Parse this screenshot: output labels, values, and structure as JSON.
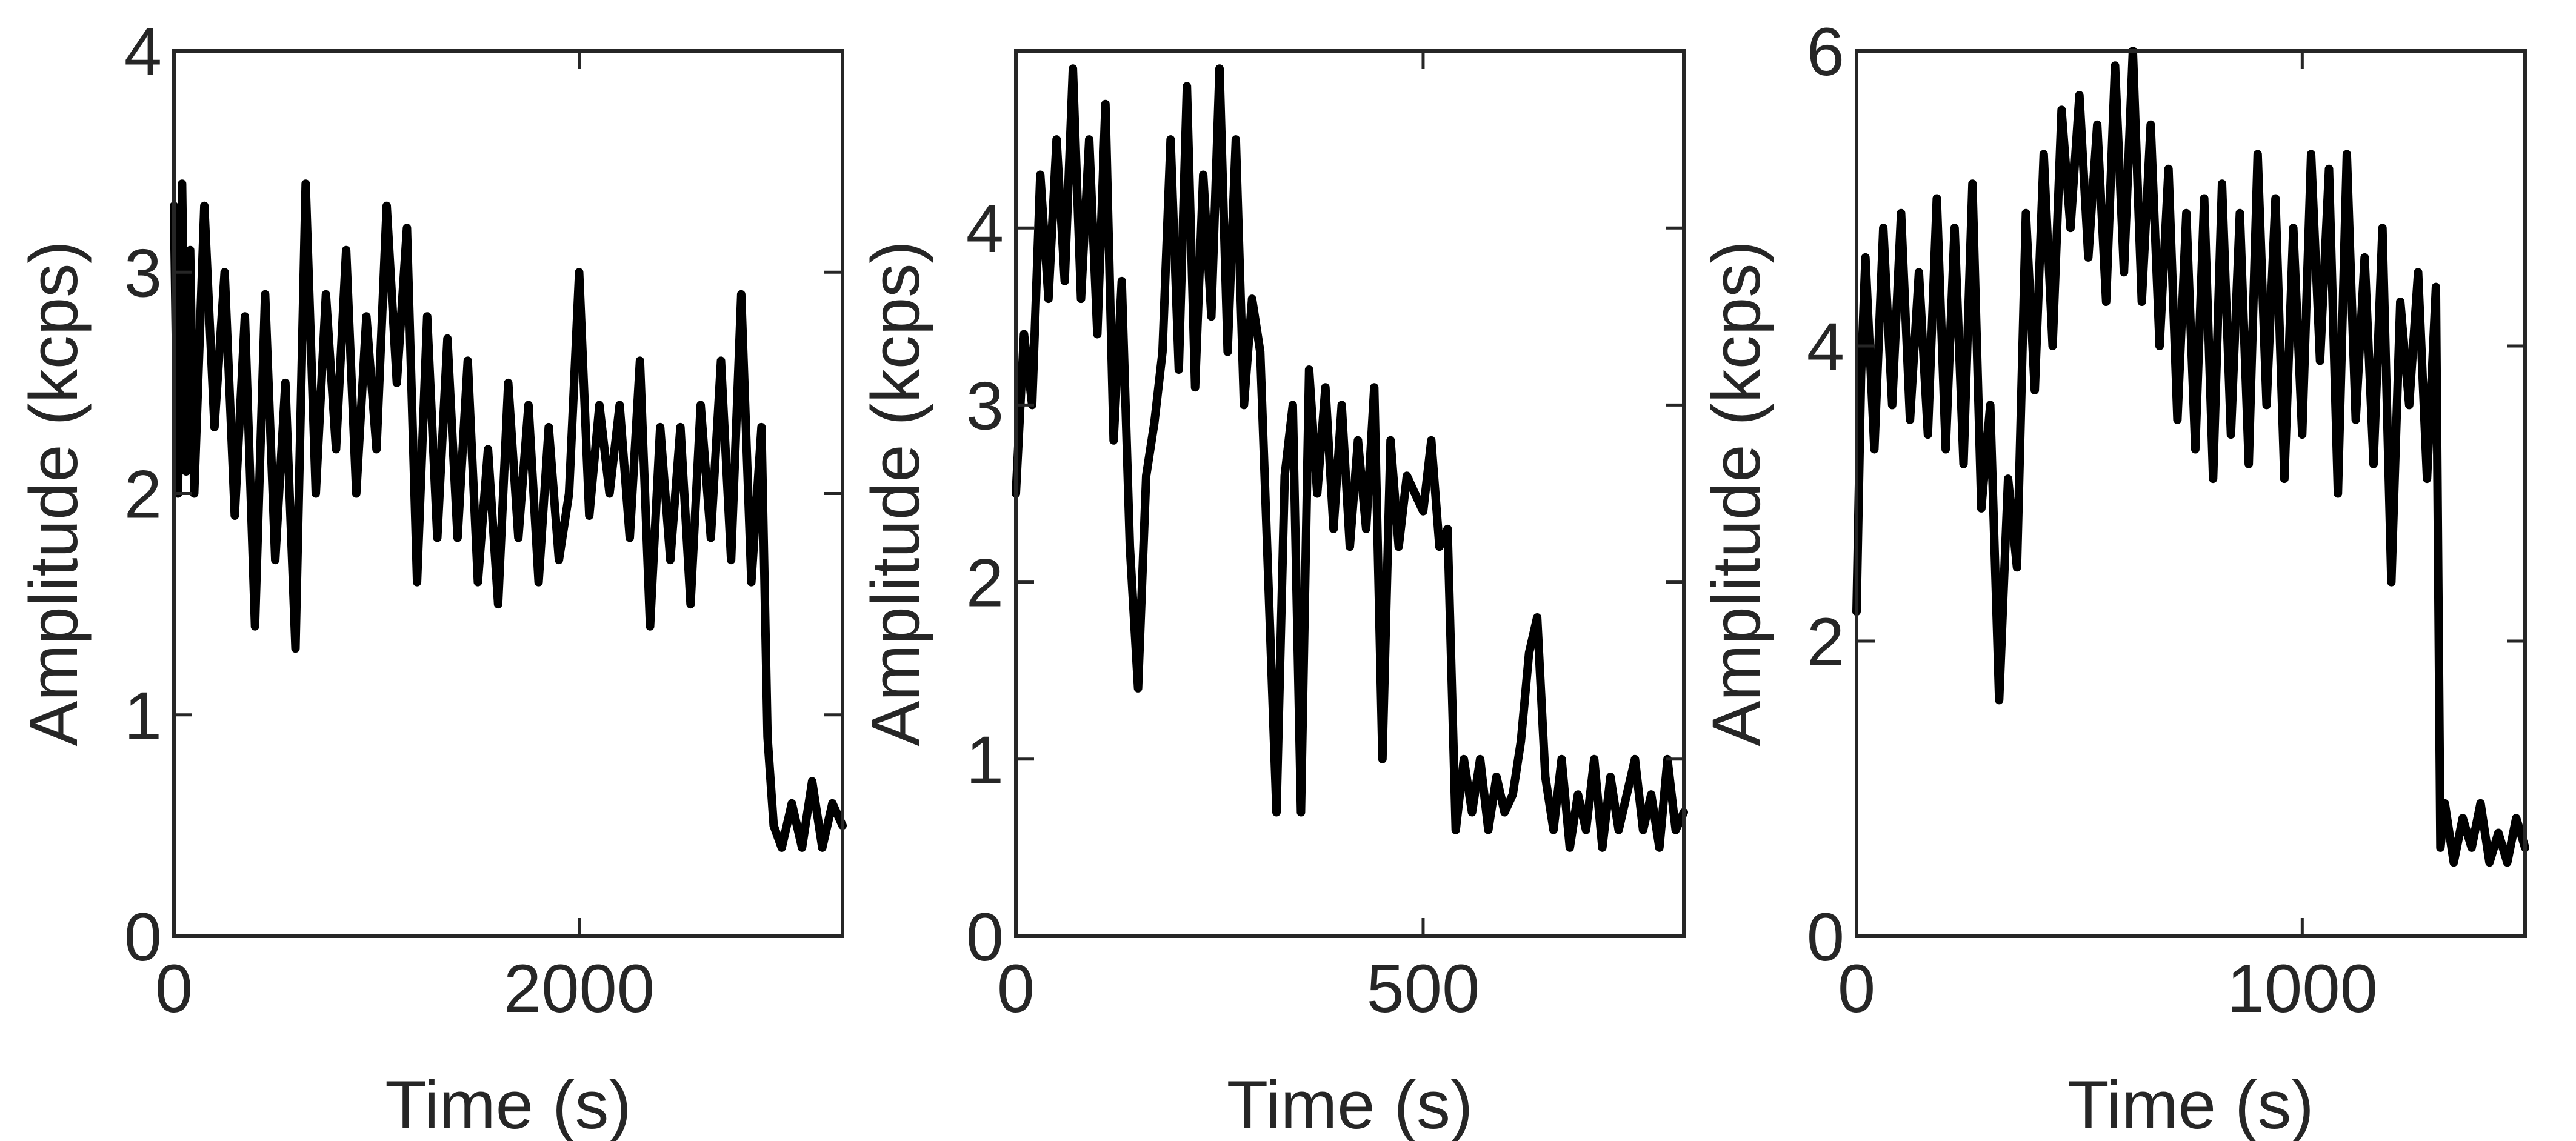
{
  "chart_data": [
    {
      "type": "line",
      "xlabel": "Time (s)",
      "ylabel": "Amplitude (kcps)",
      "xlim": [
        0,
        3300
      ],
      "ylim": [
        0,
        4
      ],
      "xticks": [
        0,
        2000
      ],
      "yticks": [
        0,
        1,
        2,
        3,
        4
      ],
      "series": [
        {
          "color": "#000000",
          "x": [
            0,
            20,
            40,
            60,
            80,
            100,
            150,
            200,
            250,
            300,
            350,
            400,
            450,
            500,
            550,
            600,
            650,
            700,
            750,
            800,
            850,
            900,
            950,
            1000,
            1050,
            1100,
            1150,
            1200,
            1250,
            1300,
            1350,
            1400,
            1450,
            1500,
            1550,
            1600,
            1650,
            1700,
            1750,
            1800,
            1850,
            1900,
            1950,
            2000,
            2050,
            2100,
            2150,
            2200,
            2250,
            2300,
            2350,
            2400,
            2450,
            2500,
            2550,
            2600,
            2650,
            2700,
            2750,
            2800,
            2850,
            2900,
            2930,
            2960,
            3000,
            3050,
            3100,
            3150,
            3200,
            3250,
            3300
          ],
          "y": [
            3.3,
            2.0,
            3.4,
            2.1,
            3.1,
            2.0,
            3.3,
            2.3,
            3.0,
            1.9,
            2.8,
            1.4,
            2.9,
            1.7,
            2.5,
            1.3,
            3.4,
            2.0,
            2.9,
            2.2,
            3.1,
            2.0,
            2.8,
            2.2,
            3.3,
            2.5,
            3.2,
            1.6,
            2.8,
            1.8,
            2.7,
            1.8,
            2.6,
            1.6,
            2.2,
            1.5,
            2.5,
            1.8,
            2.4,
            1.6,
            2.3,
            1.7,
            2.0,
            3.0,
            1.9,
            2.4,
            2.0,
            2.4,
            1.8,
            2.6,
            1.4,
            2.3,
            1.7,
            2.3,
            1.5,
            2.4,
            1.8,
            2.6,
            1.7,
            2.9,
            1.6,
            2.3,
            0.9,
            0.5,
            0.4,
            0.6,
            0.4,
            0.7,
            0.4,
            0.6,
            0.5
          ]
        }
      ]
    },
    {
      "type": "line",
      "xlabel": "Time (s)",
      "ylabel": "Amplitude (kcps)",
      "xlim": [
        0,
        820
      ],
      "ylim": [
        0,
        5
      ],
      "xticks": [
        0,
        500
      ],
      "yticks": [
        0,
        1,
        2,
        3,
        4
      ],
      "series": [
        {
          "color": "#000000",
          "x": [
            0,
            10,
            20,
            30,
            40,
            50,
            60,
            70,
            80,
            90,
            100,
            110,
            120,
            130,
            140,
            150,
            160,
            170,
            180,
            190,
            200,
            210,
            220,
            230,
            240,
            250,
            260,
            270,
            280,
            290,
            300,
            310,
            320,
            330,
            340,
            350,
            360,
            370,
            380,
            390,
            400,
            410,
            420,
            430,
            440,
            450,
            460,
            470,
            480,
            490,
            500,
            510,
            520,
            530,
            540,
            550,
            560,
            570,
            580,
            590,
            600,
            610,
            620,
            630,
            640,
            650,
            660,
            670,
            680,
            690,
            700,
            710,
            720,
            730,
            740,
            750,
            760,
            770,
            780,
            790,
            800,
            810,
            820
          ],
          "y": [
            2.5,
            3.4,
            3.0,
            4.3,
            3.6,
            4.5,
            3.7,
            4.9,
            3.6,
            4.5,
            3.4,
            4.7,
            2.8,
            3.7,
            2.2,
            1.4,
            2.6,
            2.9,
            3.3,
            4.5,
            3.2,
            4.8,
            3.1,
            4.3,
            3.5,
            4.9,
            3.3,
            4.5,
            3.0,
            3.6,
            3.3,
            2.0,
            0.7,
            2.6,
            3.0,
            0.7,
            3.2,
            2.5,
            3.1,
            2.3,
            3.0,
            2.2,
            2.8,
            2.3,
            3.1,
            1.0,
            2.8,
            2.2,
            2.6,
            2.5,
            2.4,
            2.8,
            2.2,
            2.3,
            0.6,
            1.0,
            0.7,
            1.0,
            0.6,
            0.9,
            0.7,
            0.8,
            1.1,
            1.6,
            1.8,
            0.9,
            0.6,
            1.0,
            0.5,
            0.8,
            0.6,
            1.0,
            0.5,
            0.9,
            0.6,
            0.8,
            1.0,
            0.6,
            0.8,
            0.5,
            1.0,
            0.6,
            0.7
          ]
        }
      ]
    },
    {
      "type": "line",
      "xlabel": "Time (s)",
      "ylabel": "Amplitude (kcps)",
      "xlim": [
        0,
        1500
      ],
      "ylim": [
        0,
        6
      ],
      "xticks": [
        0,
        1000
      ],
      "yticks": [
        0,
        2,
        4,
        6
      ],
      "series": [
        {
          "color": "#000000",
          "x": [
            0,
            10,
            20,
            40,
            60,
            80,
            100,
            120,
            140,
            160,
            180,
            200,
            220,
            240,
            260,
            280,
            300,
            320,
            340,
            360,
            380,
            400,
            420,
            440,
            460,
            480,
            500,
            520,
            540,
            560,
            580,
            600,
            620,
            640,
            660,
            680,
            700,
            720,
            740,
            760,
            780,
            800,
            820,
            840,
            860,
            880,
            900,
            920,
            940,
            960,
            980,
            1000,
            1020,
            1040,
            1060,
            1080,
            1100,
            1120,
            1140,
            1160,
            1180,
            1200,
            1220,
            1240,
            1260,
            1280,
            1300,
            1310,
            1320,
            1340,
            1360,
            1380,
            1400,
            1420,
            1440,
            1460,
            1480,
            1500
          ],
          "y": [
            2.2,
            3.8,
            4.6,
            3.3,
            4.8,
            3.6,
            4.9,
            3.5,
            4.5,
            3.4,
            5.0,
            3.3,
            4.8,
            3.2,
            5.1,
            2.9,
            3.6,
            1.6,
            3.1,
            2.5,
            4.9,
            3.7,
            5.3,
            4.0,
            5.6,
            4.8,
            5.7,
            4.6,
            5.5,
            4.3,
            5.9,
            4.5,
            6.0,
            4.3,
            5.5,
            4.0,
            5.2,
            3.5,
            4.9,
            3.3,
            5.0,
            3.1,
            5.1,
            3.4,
            4.9,
            3.2,
            5.3,
            3.6,
            5.0,
            3.1,
            4.8,
            3.4,
            5.3,
            3.9,
            5.2,
            3.0,
            5.3,
            3.5,
            4.6,
            3.2,
            4.8,
            2.4,
            4.3,
            3.6,
            4.5,
            3.1,
            4.4,
            0.6,
            0.9,
            0.5,
            0.8,
            0.6,
            0.9,
            0.5,
            0.7,
            0.5,
            0.8,
            0.6
          ]
        }
      ]
    }
  ]
}
